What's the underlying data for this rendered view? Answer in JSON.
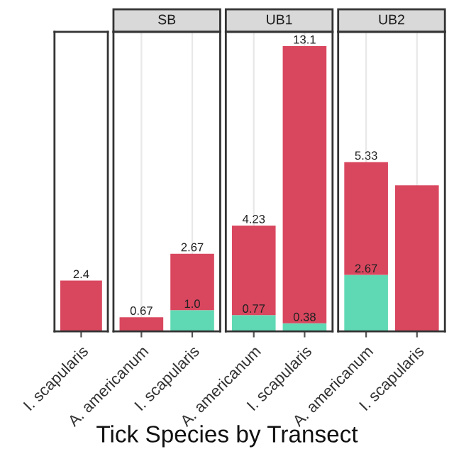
{
  "chart_data": [
    {
      "type": "bar",
      "stacked": true,
      "categories": [
        "I. scapularis"
      ],
      "tick_labels": "x",
      "series": [
        {
          "color": "#d9475f",
          "values": [
            2.4
          ],
          "value_labels": [
            "2.4"
          ]
        }
      ]
    },
    {
      "type": "bar",
      "stacked": true,
      "title": "SB",
      "categories": [
        "A. americanum",
        "I. scapularis"
      ],
      "tick_labels": "x",
      "grid": "x",
      "xlabel": "Tick Species by Transect",
      "series": [
        {
          "color": "#5fd9b3",
          "values": [
            null,
            1.0
          ],
          "value_labels": [
            null,
            "1.0"
          ]
        },
        {
          "color": "#d9475f",
          "values": [
            0.67,
            2.67
          ],
          "value_labels": [
            "0.67",
            "2.67"
          ]
        }
      ]
    },
    {
      "type": "bar",
      "stacked": true,
      "title": "UB1",
      "categories": [
        "A. americanum",
        "I. scapularis"
      ],
      "tick_labels": "x",
      "grid": "x",
      "series": [
        {
          "color": "#5fd9b3",
          "values": [
            0.77,
            0.38
          ],
          "value_labels": [
            "0.77",
            "0.38"
          ]
        },
        {
          "color": "#d9475f",
          "values": [
            4.23,
            13.1
          ],
          "value_labels": [
            "4.23",
            "13.1"
          ]
        }
      ]
    },
    {
      "type": "bar",
      "stacked": true,
      "title": "UB2",
      "categories": [
        "A. americanum",
        "I. scapularis"
      ],
      "tick_labels": "x",
      "grid": "x",
      "series": [
        {
          "color": "#5fd9b3",
          "values": [
            2.67,
            null
          ],
          "value_labels": [
            "2.67",
            null
          ]
        },
        {
          "color": "#d9475f",
          "values": [
            5.33,
            6.9
          ],
          "value_labels": [
            "5.33",
            null
          ]
        }
      ]
    }
  ]
}
